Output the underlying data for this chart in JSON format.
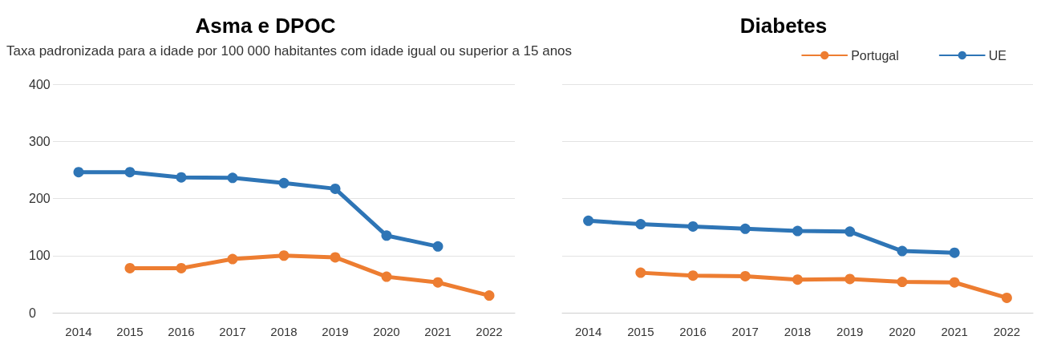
{
  "chart_data": [
    {
      "type": "line",
      "title": "Asma e DPOC",
      "subtitle": "Taxa padronizada para a idade por 100 000 habitantes com idade igual ou superior a 15 anos",
      "categories": [
        "2014",
        "2015",
        "2016",
        "2017",
        "2018",
        "2019",
        "2020",
        "2021",
        "2022"
      ],
      "series": [
        {
          "color": "#ed7d31",
          "values": [
            null,
            78,
            78,
            94,
            100,
            97,
            63,
            53,
            30
          ]
        },
        {
          "color": "#2e75b6",
          "values": [
            246,
            246,
            237,
            236,
            227,
            217,
            135,
            116,
            null
          ]
        }
      ],
      "ylim": [
        0,
        400
      ],
      "yticks": [
        0,
        100,
        200,
        300,
        400
      ],
      "grid": "y",
      "marker": "circle",
      "line_style": "solid",
      "legend": false
    },
    {
      "type": "line",
      "title": "Diabetes",
      "categories": [
        "2014",
        "2015",
        "2016",
        "2017",
        "2018",
        "2019",
        "2020",
        "2021",
        "2022"
      ],
      "series": [
        {
          "name": "Portugal",
          "color": "#ed7d31",
          "values": [
            null,
            70,
            65,
            64,
            58,
            59,
            54,
            53,
            26
          ]
        },
        {
          "name": "UE",
          "color": "#2e75b6",
          "values": [
            161,
            155,
            151,
            147,
            143,
            142,
            108,
            105,
            null
          ]
        }
      ],
      "ylim": [
        0,
        400
      ],
      "yticks": [
        0,
        100,
        200,
        300,
        400
      ],
      "grid": "y",
      "marker": "circle",
      "line_style": "solid",
      "legend": "top right",
      "tick_labels": "x"
    }
  ]
}
